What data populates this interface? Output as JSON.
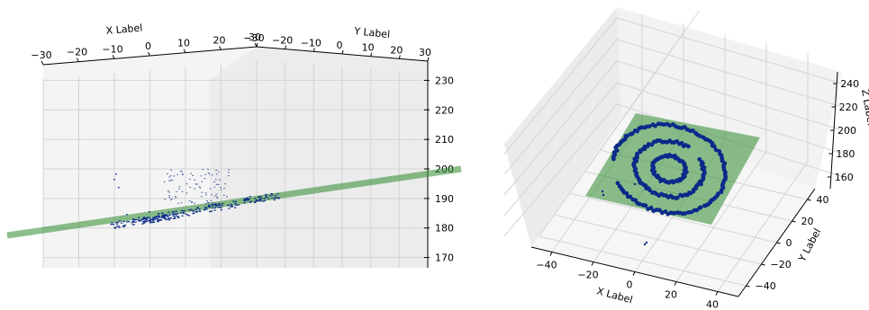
{
  "chart_data": [
    {
      "type": "scatter3d",
      "view": "side",
      "xlabel": "X Label",
      "ylabel": "Y Label",
      "zlabel": "",
      "xlim": [
        -30,
        30
      ],
      "ylim": [
        -30,
        30
      ],
      "zlim": [
        165,
        235
      ],
      "x_ticks": [
        -30,
        -20,
        -10,
        0,
        10,
        20,
        30
      ],
      "y_ticks": [
        -30,
        -20,
        -10,
        0,
        10,
        20,
        30
      ],
      "z_ticks": [
        170,
        180,
        190,
        200,
        210,
        220,
        230
      ],
      "plane_color": "#2e8b2e",
      "point_color": "#0a2a8a",
      "grid": true
    },
    {
      "type": "scatter3d",
      "view": "top",
      "xlabel": "X Label",
      "ylabel": "Y Label",
      "zlabel": "Z Label",
      "xlim": [
        -50,
        50
      ],
      "ylim": [
        -50,
        50
      ],
      "zlim": [
        150,
        250
      ],
      "x_ticks": [
        -40,
        -20,
        0,
        20,
        40
      ],
      "y_ticks": [
        -40,
        -20,
        0,
        20,
        40
      ],
      "z_ticks": [
        160,
        180,
        200,
        220,
        240
      ],
      "plane_color": "#2e8b2e",
      "point_color": "#0a2a8a",
      "grid": true
    }
  ]
}
